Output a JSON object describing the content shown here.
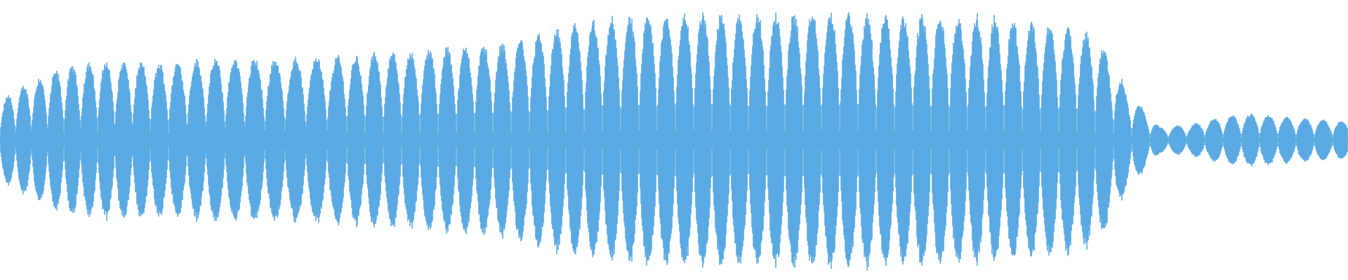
{
  "waveform": {
    "color": "#5AA9E2",
    "background": "#FFFFFF",
    "amplitude_envelope": [
      0.3,
      0.45,
      0.55,
      0.6,
      0.6,
      0.58,
      0.6,
      0.62,
      0.62,
      0.62,
      0.64,
      0.64,
      0.66,
      0.68,
      0.7,
      0.72,
      0.74,
      0.8,
      0.86,
      0.9,
      0.94,
      0.96,
      0.97,
      0.97,
      0.96,
      0.96,
      0.97,
      0.98,
      0.96,
      0.96,
      0.95,
      0.94,
      0.92,
      0.9,
      0.86,
      0.8,
      0.36,
      0.1,
      0.12,
      0.18,
      0.2,
      0.18,
      0.16,
      0.14
    ]
  }
}
